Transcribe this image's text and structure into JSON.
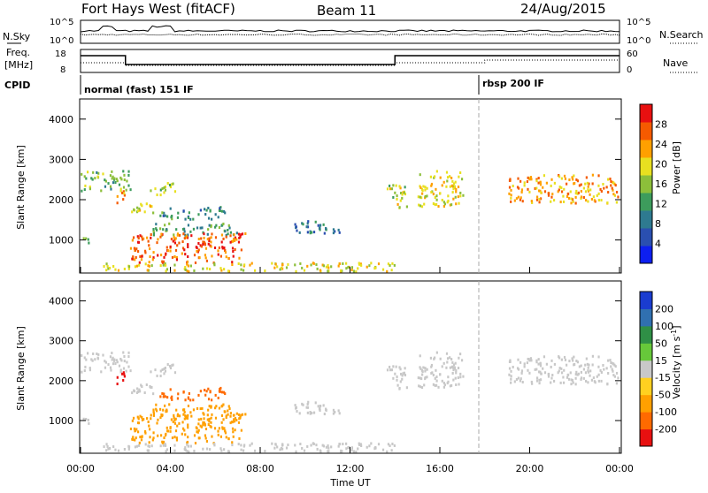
{
  "header": {
    "station": "Fort Hays West (fitACF)",
    "beam": "Beam 11",
    "date": "24/Aug/2015"
  },
  "status_panels": {
    "nsky_label": "N.Sky",
    "nsearch_label": "N.Search",
    "freq_label_line1": "Freq.",
    "freq_label_line2": "[MHz]",
    "nave_label": "Nave",
    "cpid_label": "CPID",
    "noise_left_ticks": [
      "10^5",
      "10^0"
    ],
    "noise_right_ticks": [
      "10^5",
      "10^0"
    ],
    "freq_left_ticks": [
      "18",
      "8"
    ],
    "freq_right_ticks": [
      "60",
      "0"
    ],
    "cpid_segments": [
      {
        "label": "normal (fast) 151 IF",
        "start_hour": 0,
        "end_hour": 18
      },
      {
        "label": "rbsp 200 IF",
        "start_hour": 18,
        "end_hour": 24
      }
    ],
    "freq_steps": [
      {
        "start_hour": 0,
        "end_hour": 2,
        "level": "high"
      },
      {
        "start_hour": 2,
        "end_hour": 14,
        "level": "low"
      },
      {
        "start_hour": 14,
        "end_hour": 24,
        "level": "high"
      }
    ]
  },
  "xaxis": {
    "label": "Time UT",
    "ticks": [
      "00:00",
      "04:00",
      "08:00",
      "12:00",
      "16:00",
      "20:00",
      "00:00"
    ],
    "range_hours": [
      0,
      24
    ]
  },
  "power_panel": {
    "ylabel": "Slant Range [km]",
    "yticks": [
      "1000",
      "2000",
      "3000",
      "4000"
    ],
    "colorbar_label": "Power [dB]",
    "colorbar_ticks": [
      "4",
      "8",
      "12",
      "16",
      "20",
      "24",
      "28"
    ],
    "colors": [
      "#0d1ff0",
      "#2a4fb0",
      "#2e7a90",
      "#3d9c5c",
      "#8cbf3a",
      "#e8e020",
      "#ffa000",
      "#f55a00",
      "#e81010"
    ]
  },
  "velocity_panel": {
    "ylabel": "Slant Range [km]",
    "yticks": [
      "1000",
      "2000",
      "3000",
      "4000"
    ],
    "colorbar_label": "Velocity [m s^-1]",
    "colorbar_ticks": [
      "200",
      "100",
      "50",
      "15",
      "-15",
      "-50",
      "-100",
      "-200"
    ],
    "colors": [
      "#1a3cd0",
      "#3070b0",
      "#2f8f46",
      "#67c83a",
      "#c8c8c8",
      "#ffd020",
      "#ffa000",
      "#ff6a00",
      "#e81010"
    ]
  },
  "chart_data": {
    "type": "heatmap",
    "x_unit": "hours UT",
    "y_unit": "km",
    "xlim": [
      0,
      24
    ],
    "ylim": [
      180,
      4500
    ],
    "regions": [
      {
        "t0": 0.0,
        "t1": 2.2,
        "r0": 2200,
        "r1": 2700,
        "power_dB": 14,
        "velocity": 0
      },
      {
        "t0": 0.0,
        "t1": 0.4,
        "r0": 850,
        "r1": 1050,
        "power_dB": 14,
        "velocity": 0
      },
      {
        "t0": 1.5,
        "t1": 2.0,
        "r0": 1900,
        "r1": 2200,
        "power_dB": 26,
        "velocity": -200
      },
      {
        "t0": 2.0,
        "t1": 3.2,
        "r0": 1650,
        "r1": 1950,
        "power_dB": 20,
        "velocity": 0
      },
      {
        "t0": 3.0,
        "t1": 4.2,
        "r0": 2100,
        "r1": 2400,
        "power_dB": 18,
        "velocity": 0
      },
      {
        "t0": 3.5,
        "t1": 6.4,
        "r0": 1500,
        "r1": 1800,
        "power_dB": 10,
        "velocity": -100
      },
      {
        "t0": 3.2,
        "t1": 7.0,
        "r0": 1100,
        "r1": 1400,
        "power_dB": 12,
        "velocity": -50
      },
      {
        "t0": 2.2,
        "t1": 7.3,
        "r0": 420,
        "r1": 1150,
        "power_dB": 28,
        "velocity": -50
      },
      {
        "t0": 1.0,
        "t1": 14.0,
        "r0": 200,
        "r1": 420,
        "power_dB": 20,
        "velocity": -15
      },
      {
        "t0": 9.5,
        "t1": 11.5,
        "r0": 1100,
        "r1": 1450,
        "power_dB": 8,
        "velocity": 15
      },
      {
        "t0": 13.6,
        "t1": 14.5,
        "r0": 1750,
        "r1": 2350,
        "power_dB": 18,
        "velocity": 15
      },
      {
        "t0": 15.0,
        "t1": 17.0,
        "r0": 1800,
        "r1": 2700,
        "power_dB": 20,
        "velocity": 15
      },
      {
        "t0": 19.0,
        "t1": 24.0,
        "r0": 1900,
        "r1": 2600,
        "power_dB": 24,
        "velocity": 15
      }
    ]
  }
}
